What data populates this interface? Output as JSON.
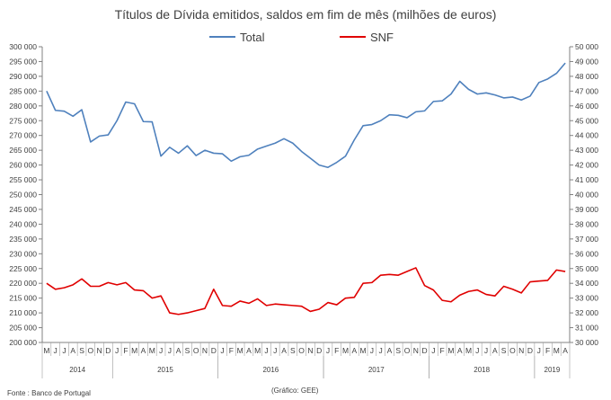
{
  "chart_data": {
    "type": "line",
    "title": "Títulos de Dívida emitidos, saldos em fim de mês  (milhões de euros)",
    "source": "Fonte : Banco de Portugal",
    "credit": "(Gráfico: GEE)",
    "grid": false,
    "legend_position": "top-center",
    "left_axis": {
      "min": 200000,
      "max": 300000,
      "step": 5000,
      "ticks": [
        "200 000",
        "205 000",
        "210 000",
        "215 000",
        "220 000",
        "225 000",
        "230 000",
        "235 000",
        "240 000",
        "245 000",
        "250 000",
        "255 000",
        "260 000",
        "265 000",
        "270 000",
        "275 000",
        "280 000",
        "285 000",
        "290 000",
        "295 000",
        "300 000"
      ]
    },
    "right_axis": {
      "min": 30000,
      "max": 50000,
      "step": 1000,
      "ticks": [
        "30 000",
        "31 000",
        "32 000",
        "33 000",
        "34 000",
        "35 000",
        "36 000",
        "37 000",
        "38 000",
        "39 000",
        "40 000",
        "41 000",
        "42 000",
        "43 000",
        "44 000",
        "45 000",
        "46 000",
        "47 000",
        "48 000",
        "49 000",
        "50 000"
      ]
    },
    "months": [
      "M",
      "J",
      "J",
      "A",
      "S",
      "O",
      "N",
      "D",
      "J",
      "F",
      "M",
      "A",
      "M",
      "J",
      "J",
      "A",
      "S",
      "O",
      "N",
      "D",
      "J",
      "F",
      "M",
      "A",
      "M",
      "J",
      "J",
      "A",
      "S",
      "O",
      "N",
      "D",
      "J",
      "F",
      "M",
      "A",
      "M",
      "J",
      "J",
      "A",
      "S",
      "O",
      "N",
      "D",
      "J",
      "F",
      "M",
      "A",
      "M",
      "J",
      "J",
      "A",
      "S",
      "O",
      "N",
      "D",
      "J",
      "F",
      "M",
      "A"
    ],
    "years": [
      {
        "label": "2014",
        "start": 0,
        "end": 7
      },
      {
        "label": "2015",
        "start": 8,
        "end": 19
      },
      {
        "label": "2016",
        "start": 20,
        "end": 31
      },
      {
        "label": "2017",
        "start": 32,
        "end": 43
      },
      {
        "label": "2018",
        "start": 44,
        "end": 55
      },
      {
        "label": "2019",
        "start": 56,
        "end": 59
      }
    ],
    "series": [
      {
        "name": "Total",
        "axis": "left",
        "color": "#4f81bd",
        "values": [
          285000,
          278500,
          278200,
          276500,
          278700,
          267800,
          269800,
          270200,
          275000,
          281300,
          280700,
          274700,
          274600,
          263000,
          266000,
          264000,
          266500,
          263200,
          265000,
          264000,
          263800,
          261300,
          262800,
          263300,
          265400,
          266400,
          267400,
          268900,
          267400,
          264600,
          262300,
          260000,
          259200,
          260900,
          263000,
          268500,
          273300,
          273700,
          275000,
          277000,
          276800,
          276000,
          278000,
          278300,
          281500,
          281700,
          284000,
          288300,
          285600,
          284000,
          284400,
          283700,
          282700,
          283000,
          282000,
          283300,
          287900,
          289100,
          291000,
          294500
        ]
      },
      {
        "name": "SNF",
        "axis": "right",
        "color": "#e00000",
        "values": [
          34000,
          33600,
          33700,
          33900,
          34300,
          33800,
          33800,
          34050,
          33900,
          34050,
          33550,
          33500,
          33000,
          33150,
          32000,
          31900,
          32000,
          32150,
          32300,
          33600,
          32500,
          32450,
          32800,
          32650,
          32950,
          32500,
          32600,
          32550,
          32500,
          32450,
          32100,
          32250,
          32700,
          32550,
          33000,
          33050,
          34000,
          34050,
          34550,
          34600,
          34550,
          34800,
          35050,
          33850,
          33550,
          32850,
          32750,
          33200,
          33450,
          33550,
          33250,
          33150,
          33800,
          33600,
          33350,
          34100,
          34150,
          34200,
          34900,
          34800
        ]
      }
    ]
  }
}
